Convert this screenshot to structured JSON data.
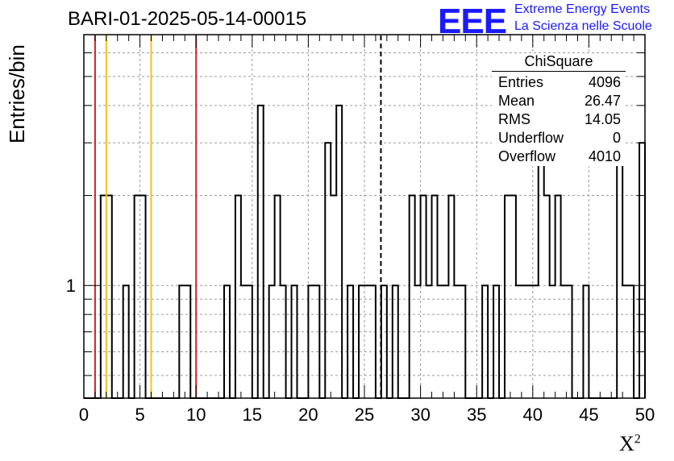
{
  "title": "BARI-01-2025-05-14-00015",
  "ylabel": "Entries/bin",
  "xlabel": "X",
  "xlabel_sup": "2",
  "logo": {
    "mark": "EEE",
    "line1": "Extreme Energy Events",
    "line2": "La Scienza nelle Scuole",
    "color": "#1a1aff"
  },
  "stats": {
    "name": "ChiSquare",
    "rows": [
      {
        "label": "Entries",
        "value": "4096"
      },
      {
        "label": "Mean",
        "value": "26.47"
      },
      {
        "label": "RMS",
        "value": "14.05"
      },
      {
        "label": "Underflow",
        "value": "0"
      },
      {
        "label": "Overflow",
        "value": "4010"
      }
    ]
  },
  "chart_data": {
    "type": "histogram",
    "xlim": [
      0,
      50
    ],
    "yscale": "log",
    "ylim": [
      0.42,
      6.9
    ],
    "bin_width": 0.5,
    "grid": true,
    "x_ticks": [
      0,
      5,
      10,
      15,
      20,
      25,
      30,
      35,
      40,
      45,
      50
    ],
    "y_tick_labels": [
      1
    ],
    "bins": [
      {
        "x": 1.5,
        "y": 2
      },
      {
        "x": 2.0,
        "y": 2
      },
      {
        "x": 4.5,
        "y": 2
      },
      {
        "x": 5.0,
        "y": 2
      },
      {
        "x": 3.5,
        "y": 1
      },
      {
        "x": 8.5,
        "y": 1
      },
      {
        "x": 9.0,
        "y": 1
      },
      {
        "x": 12.5,
        "y": 1
      },
      {
        "x": 13.5,
        "y": 2
      },
      {
        "x": 14.0,
        "y": 1
      },
      {
        "x": 14.5,
        "y": 1
      },
      {
        "x": 15.5,
        "y": 4
      },
      {
        "x": 16.5,
        "y": 1
      },
      {
        "x": 17.0,
        "y": 2
      },
      {
        "x": 17.5,
        "y": 1
      },
      {
        "x": 18.5,
        "y": 1
      },
      {
        "x": 20.0,
        "y": 1
      },
      {
        "x": 20.5,
        "y": 1
      },
      {
        "x": 21.5,
        "y": 3
      },
      {
        "x": 22.0,
        "y": 2
      },
      {
        "x": 22.5,
        "y": 4
      },
      {
        "x": 23.5,
        "y": 1
      },
      {
        "x": 24.5,
        "y": 1
      },
      {
        "x": 25.0,
        "y": 1
      },
      {
        "x": 25.5,
        "y": 1
      },
      {
        "x": 26.5,
        "y": 1
      },
      {
        "x": 27.5,
        "y": 1
      },
      {
        "x": 29.0,
        "y": 2
      },
      {
        "x": 29.5,
        "y": 1
      },
      {
        "x": 30.0,
        "y": 2
      },
      {
        "x": 30.5,
        "y": 1
      },
      {
        "x": 31.0,
        "y": 2
      },
      {
        "x": 31.5,
        "y": 1
      },
      {
        "x": 32.0,
        "y": 1
      },
      {
        "x": 32.5,
        "y": 2
      },
      {
        "x": 33.0,
        "y": 1
      },
      {
        "x": 33.5,
        "y": 1
      },
      {
        "x": 35.5,
        "y": 1
      },
      {
        "x": 36.5,
        "y": 1
      },
      {
        "x": 37.5,
        "y": 2
      },
      {
        "x": 38.0,
        "y": 2
      },
      {
        "x": 38.5,
        "y": 1
      },
      {
        "x": 39.0,
        "y": 1
      },
      {
        "x": 39.5,
        "y": 1
      },
      {
        "x": 40.0,
        "y": 1
      },
      {
        "x": 40.5,
        "y": 3
      },
      {
        "x": 41.0,
        "y": 2
      },
      {
        "x": 41.5,
        "y": 1
      },
      {
        "x": 42.0,
        "y": 2
      },
      {
        "x": 42.5,
        "y": 1
      },
      {
        "x": 43.0,
        "y": 1
      },
      {
        "x": 44.5,
        "y": 1
      },
      {
        "x": 47.5,
        "y": 3
      },
      {
        "x": 48.0,
        "y": 1
      },
      {
        "x": 48.5,
        "y": 1
      },
      {
        "x": 49.5,
        "y": 3
      }
    ],
    "vlines": [
      {
        "x": 1.0,
        "color": "#d62020",
        "style": "solid"
      },
      {
        "x": 2.0,
        "color": "#f2c416",
        "style": "solid"
      },
      {
        "x": 6.0,
        "color": "#f2c416",
        "style": "solid"
      },
      {
        "x": 10.0,
        "color": "#d62020",
        "style": "solid"
      },
      {
        "x": 26.47,
        "color": "#000000",
        "style": "dashed"
      }
    ]
  }
}
